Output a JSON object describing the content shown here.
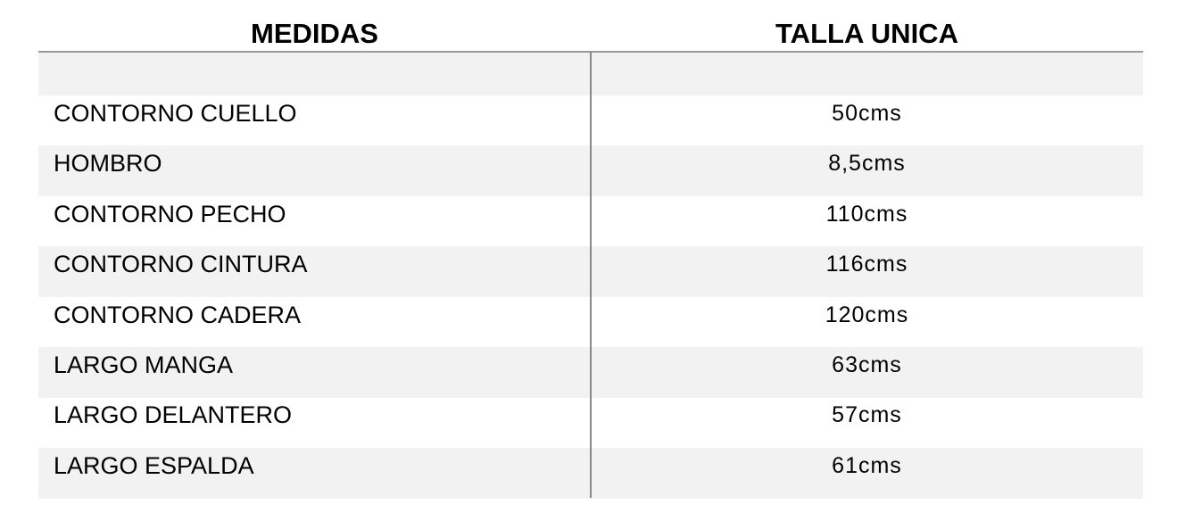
{
  "table": {
    "headers": [
      "MEDIDAS",
      "TALLA UNICA"
    ],
    "rows": [
      [
        "CONTORNO CUELLO",
        "50cms"
      ],
      [
        "HOMBRO",
        "8,5cms"
      ],
      [
        "CONTORNO PECHO",
        "110cms"
      ],
      [
        "CONTORNO CINTURA",
        "116cms"
      ],
      [
        "CONTORNO CADERA",
        "120cms"
      ],
      [
        "LARGO MANGA",
        "63cms"
      ],
      [
        "LARGO DELANTERO",
        "57cms"
      ],
      [
        "LARGO ESPALDA",
        "61cms"
      ]
    ]
  }
}
